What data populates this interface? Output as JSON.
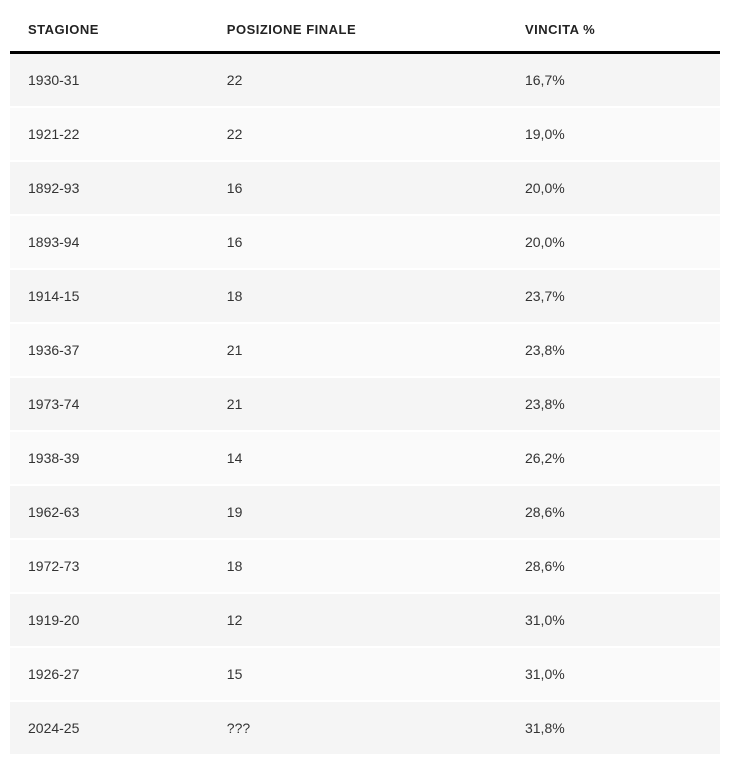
{
  "table": {
    "columns": [
      {
        "key": "season",
        "label": "STAGIONE"
      },
      {
        "key": "position",
        "label": "POSIZIONE FINALE"
      },
      {
        "key": "winpct",
        "label": "VINCITA %"
      }
    ],
    "rows": [
      {
        "season": "1930-31",
        "position": "22",
        "winpct": "16,7%"
      },
      {
        "season": "1921-22",
        "position": "22",
        "winpct": "19,0%"
      },
      {
        "season": "1892-93",
        "position": "16",
        "winpct": "20,0%"
      },
      {
        "season": "1893-94",
        "position": "16",
        "winpct": "20,0%"
      },
      {
        "season": "1914-15",
        "position": "18",
        "winpct": "23,7%"
      },
      {
        "season": "1936-37",
        "position": "21",
        "winpct": "23,8%"
      },
      {
        "season": "1973-74",
        "position": "21",
        "winpct": "23,8%"
      },
      {
        "season": "1938-39",
        "position": "14",
        "winpct": "26,2%"
      },
      {
        "season": "1962-63",
        "position": "19",
        "winpct": "28,6%"
      },
      {
        "season": "1972-73",
        "position": "18",
        "winpct": "28,6%"
      },
      {
        "season": "1919-20",
        "position": "12",
        "winpct": "31,0%"
      },
      {
        "season": "1926-27",
        "position": "15",
        "winpct": "31,0%"
      },
      {
        "season": "2024-25",
        "position": "???",
        "winpct": "31,8%"
      }
    ],
    "header_border_color": "#000000",
    "row_bg_odd": "#f5f5f5",
    "row_bg_even": "#fafafa",
    "text_color": "#333333",
    "header_text_color": "#222222",
    "font_size_header": 13,
    "font_size_cell": 14
  }
}
